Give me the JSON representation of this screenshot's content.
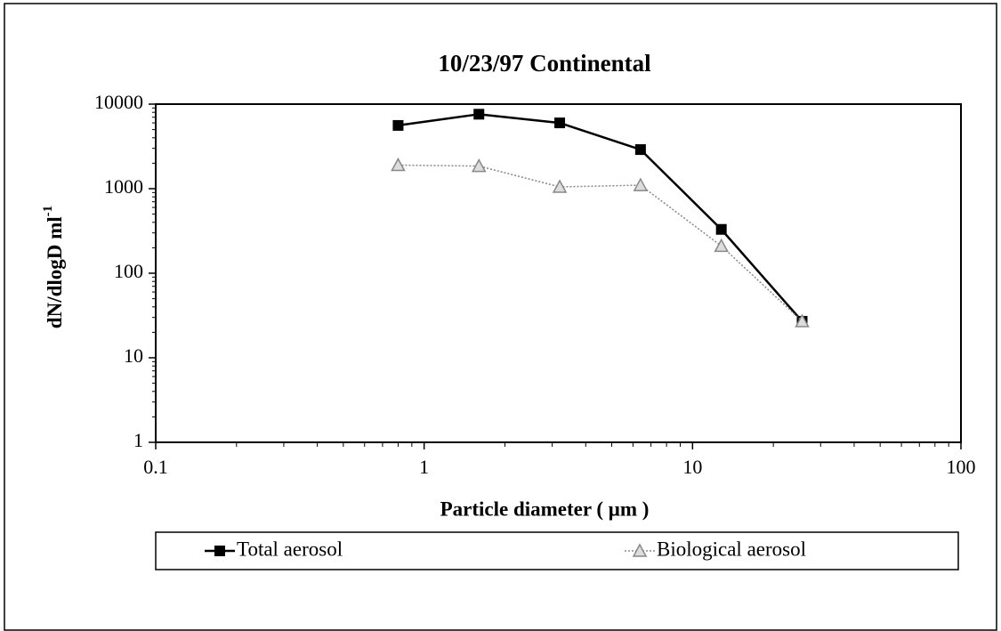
{
  "chart_data": {
    "type": "line",
    "title": "10/23/97 Continental",
    "x_label": "Particle diameter ( μm )",
    "y_label": {
      "text": "dN/dlogD ml",
      "superscript": "-1"
    },
    "x": [
      0.8,
      1.6,
      3.2,
      6.4,
      12.8,
      25.6
    ],
    "series": [
      {
        "name": "Total aerosol",
        "color": "#000000",
        "marker": "square",
        "dash": "solid",
        "values": [
          5600,
          7600,
          6000,
          2900,
          330,
          27
        ]
      },
      {
        "name": "Biological aerosol",
        "color": "#888888",
        "marker": "triangle",
        "dash": "dotted",
        "values": [
          1900,
          1850,
          1050,
          1100,
          210,
          27
        ]
      }
    ],
    "xlim": [
      0.1,
      100
    ],
    "xticks": [
      0.1,
      1,
      10,
      100
    ],
    "xscale": "log",
    "ylim": [
      1,
      10000
    ],
    "yticks": [
      1,
      10,
      100,
      1000,
      10000
    ],
    "yscale": "log",
    "grid": false,
    "legend": "bottom"
  }
}
